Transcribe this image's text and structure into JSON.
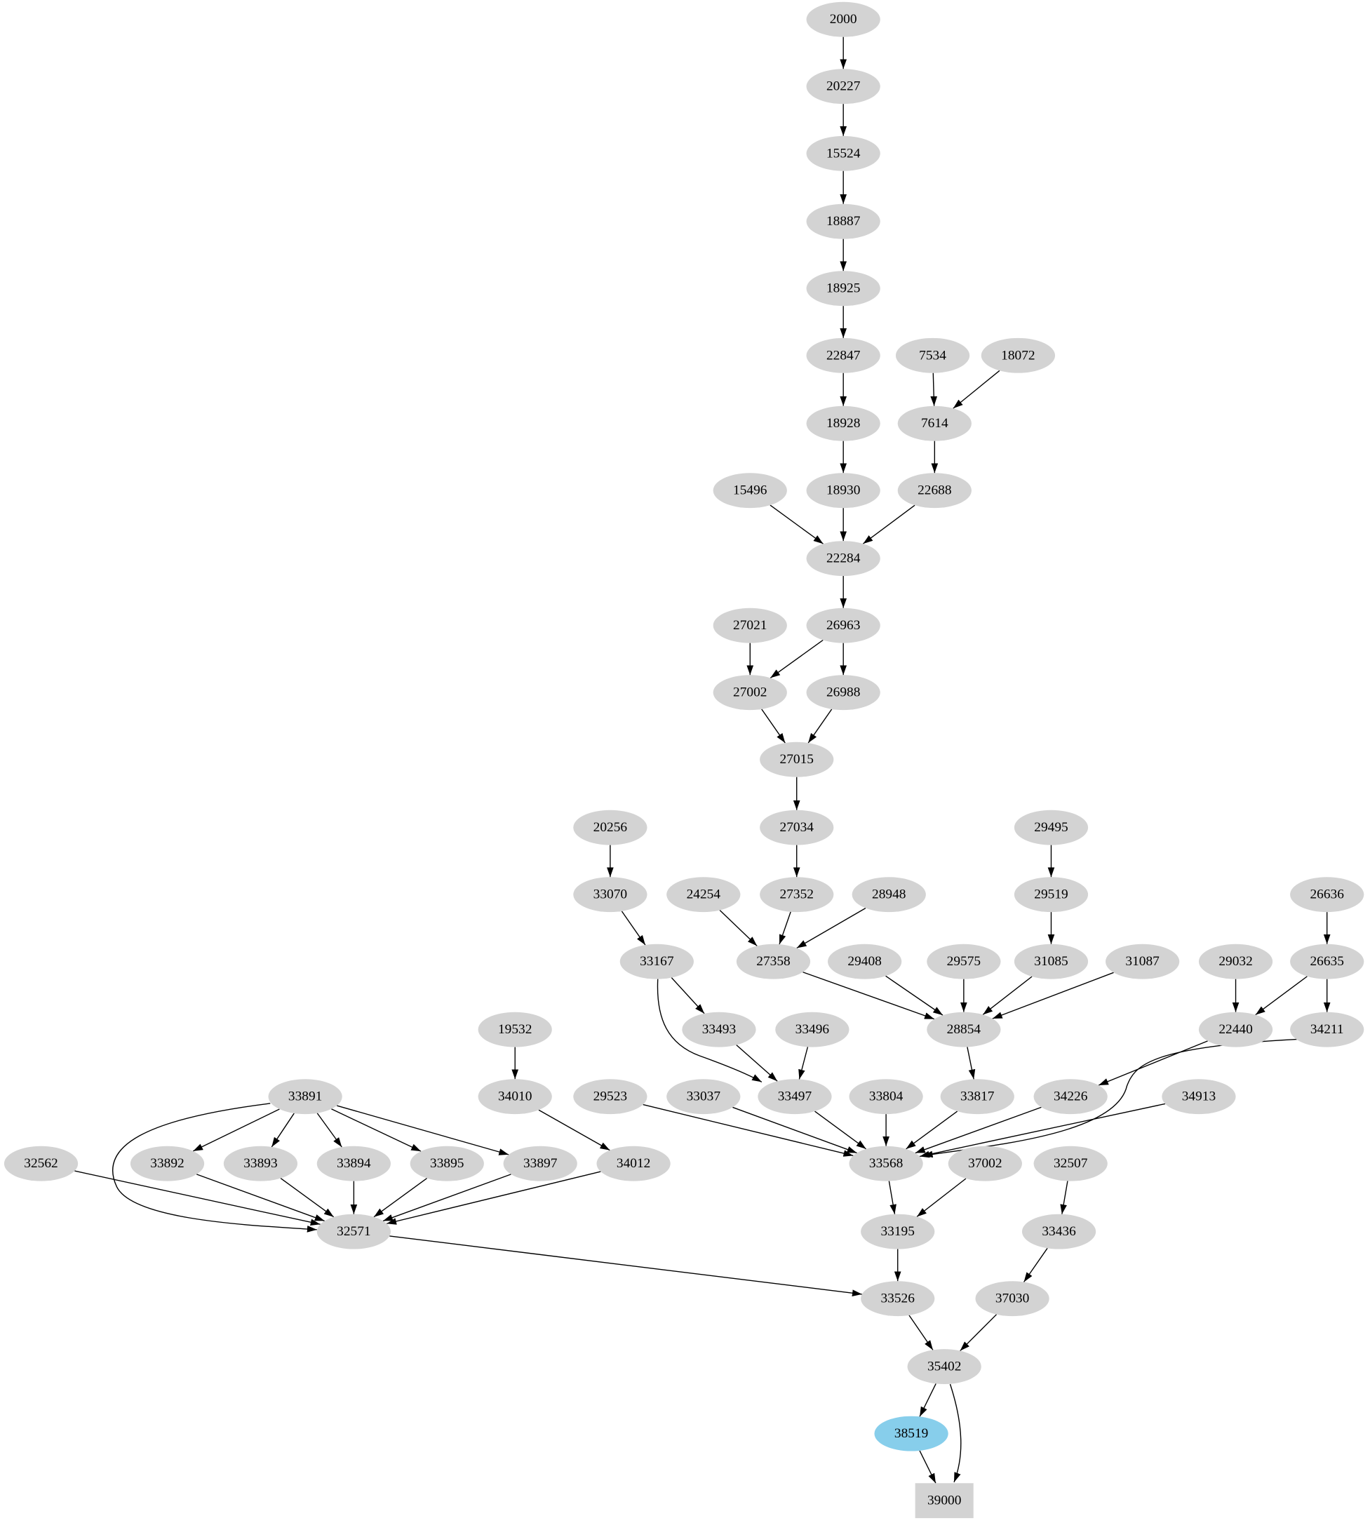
{
  "graph": {
    "node_fill": "#d3d3d3",
    "highlight_fill": "#87ceeb",
    "highlight_node": "38519",
    "box_node": "39000",
    "nodes": [
      "2000",
      "20227",
      "15524",
      "18887",
      "18925",
      "22847",
      "7534",
      "18072",
      "18928",
      "7614",
      "15496",
      "18930",
      "22688",
      "22284",
      "27021",
      "26963",
      "27002",
      "26988",
      "27015",
      "20256",
      "27034",
      "29495",
      "33070",
      "24254",
      "27352",
      "28948",
      "29519",
      "26636",
      "33167",
      "27358",
      "29408",
      "29575",
      "31085",
      "31087",
      "29032",
      "26635",
      "19532",
      "33493",
      "33496",
      "28854",
      "22440",
      "34211",
      "33891",
      "34010",
      "29523",
      "33037",
      "33497",
      "33804",
      "33817",
      "34226",
      "34913",
      "32562",
      "33892",
      "33893",
      "33894",
      "33895",
      "33897",
      "34012",
      "33568",
      "37002",
      "32507",
      "32571",
      "33195",
      "33436",
      "33526",
      "37030",
      "35402",
      "38519",
      "39000"
    ],
    "edges": [
      [
        "2000",
        "20227"
      ],
      [
        "20227",
        "15524"
      ],
      [
        "15524",
        "18887"
      ],
      [
        "18887",
        "18925"
      ],
      [
        "18925",
        "22847"
      ],
      [
        "22847",
        "18928"
      ],
      [
        "18928",
        "18930"
      ],
      [
        "7534",
        "7614"
      ],
      [
        "18072",
        "7614"
      ],
      [
        "7614",
        "22688"
      ],
      [
        "15496",
        "22284"
      ],
      [
        "18930",
        "22284"
      ],
      [
        "22688",
        "22284"
      ],
      [
        "22284",
        "26963"
      ],
      [
        "27021",
        "27002"
      ],
      [
        "26963",
        "27002"
      ],
      [
        "26963",
        "26988"
      ],
      [
        "27002",
        "27015"
      ],
      [
        "26988",
        "27015"
      ],
      [
        "27015",
        "27034"
      ],
      [
        "27034",
        "27352"
      ],
      [
        "20256",
        "33070"
      ],
      [
        "33070",
        "33167"
      ],
      [
        "24254",
        "27358"
      ],
      [
        "27352",
        "27358"
      ],
      [
        "28948",
        "27358"
      ],
      [
        "29495",
        "29519"
      ],
      [
        "29519",
        "31085"
      ],
      [
        "26636",
        "26635"
      ],
      [
        "33167",
        "33493"
      ],
      [
        "33167",
        "33497"
      ],
      [
        "27358",
        "28854"
      ],
      [
        "29408",
        "28854"
      ],
      [
        "29575",
        "28854"
      ],
      [
        "31085",
        "28854"
      ],
      [
        "31087",
        "28854"
      ],
      [
        "29032",
        "22440"
      ],
      [
        "26635",
        "22440"
      ],
      [
        "26635",
        "34211"
      ],
      [
        "19532",
        "34010"
      ],
      [
        "33493",
        "33497"
      ],
      [
        "33496",
        "33497"
      ],
      [
        "28854",
        "33817"
      ],
      [
        "22440",
        "34226"
      ],
      [
        "34211",
        "33568"
      ],
      [
        "33891",
        "33892"
      ],
      [
        "33891",
        "33893"
      ],
      [
        "33891",
        "33894"
      ],
      [
        "33891",
        "33895"
      ],
      [
        "33891",
        "33897"
      ],
      [
        "33891",
        "32571"
      ],
      [
        "34010",
        "34012"
      ],
      [
        "29523",
        "33568"
      ],
      [
        "33037",
        "33568"
      ],
      [
        "33497",
        "33568"
      ],
      [
        "33804",
        "33568"
      ],
      [
        "33817",
        "33568"
      ],
      [
        "34226",
        "33568"
      ],
      [
        "34913",
        "33568"
      ],
      [
        "32562",
        "32571"
      ],
      [
        "33892",
        "32571"
      ],
      [
        "33893",
        "32571"
      ],
      [
        "33894",
        "32571"
      ],
      [
        "33895",
        "32571"
      ],
      [
        "33897",
        "32571"
      ],
      [
        "34012",
        "32571"
      ],
      [
        "33568",
        "33195"
      ],
      [
        "37002",
        "33195"
      ],
      [
        "32507",
        "33436"
      ],
      [
        "33436",
        "37030"
      ],
      [
        "32571",
        "33526"
      ],
      [
        "33195",
        "33526"
      ],
      [
        "33526",
        "35402"
      ],
      [
        "37030",
        "35402"
      ],
      [
        "35402",
        "38519"
      ],
      [
        "35402",
        "39000"
      ],
      [
        "38519",
        "39000"
      ]
    ]
  }
}
